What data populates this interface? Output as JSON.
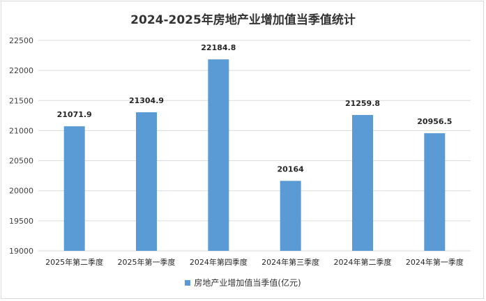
{
  "chart_data": {
    "type": "bar",
    "title": "2024-2025年房地产业增加值当季值统计",
    "categories": [
      "2025年第二季度",
      "2025年第一季度",
      "2024年第四季度",
      "2024年第三季度",
      "2024年第二季度",
      "2024年第一季度"
    ],
    "series": [
      {
        "name": "房地产业增加值当季值(亿元)",
        "values": [
          21071.9,
          21304.9,
          22184.8,
          20164,
          21259.8,
          20956.5
        ],
        "labels": [
          "21071.9",
          "21304.9",
          "22184.8",
          "20164",
          "21259.8",
          "20956.5"
        ]
      }
    ],
    "xlabel": "",
    "ylabel": "",
    "ylim": [
      19000,
      22500
    ],
    "yticks": [
      19000,
      19500,
      20000,
      20500,
      21000,
      21500,
      22000,
      22500
    ],
    "grid": true,
    "legend": "bottom",
    "bar_color": "#5b9bd5",
    "grid_color": "#d9d9d9"
  }
}
